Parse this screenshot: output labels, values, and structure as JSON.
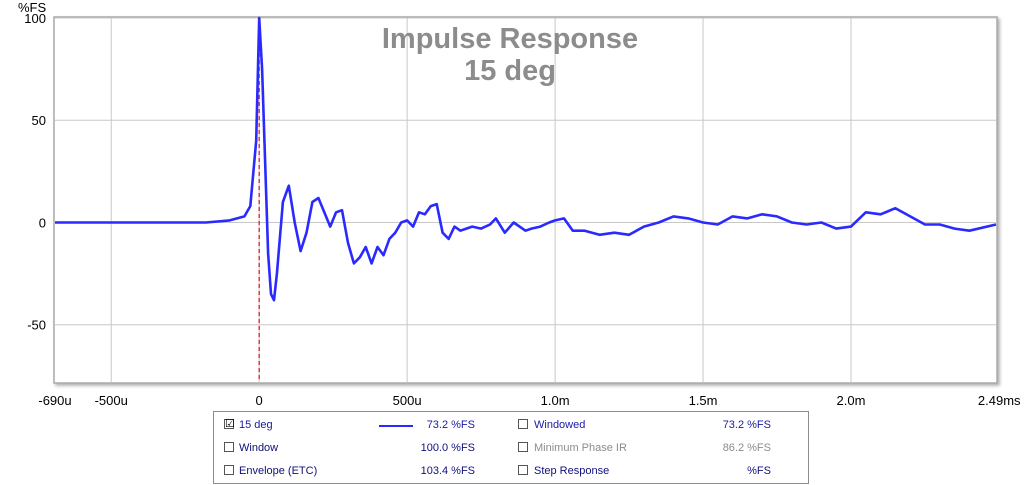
{
  "chart_data": {
    "type": "line",
    "title": "Impulse Response",
    "subtitle": "15 deg",
    "ylabel": "%FS",
    "x_unit_label": "s",
    "ylim": [
      -78,
      100
    ],
    "xlim": [
      -0.00069,
      0.00249
    ],
    "y_ticks": [
      100,
      50,
      0,
      -50
    ],
    "y_tick_labels": [
      "100",
      "50",
      "0",
      "-50"
    ],
    "x_ticks": [
      -0.00069,
      -0.0005,
      0,
      0.0005,
      0.001,
      0.0015,
      0.002,
      0.00249
    ],
    "x_tick_labels": [
      "-690u",
      "-500u",
      "0",
      "500u",
      "1.0m",
      "1.5m",
      "2.0m",
      "2.49m"
    ],
    "grid": true,
    "marker_x": 0,
    "series": [
      {
        "name": "15 deg",
        "color": "#2a2aff",
        "x": [
          -0.00069,
          -0.0005,
          -0.0003,
          -0.00018,
          -0.0001,
          -5e-05,
          -3e-05,
          -1e-05,
          0,
          1e-05,
          2e-05,
          3e-05,
          4e-05,
          5e-05,
          6e-05,
          8e-05,
          0.0001,
          0.00012,
          0.00014,
          0.00016,
          0.00018,
          0.0002,
          0.00022,
          0.00024,
          0.00026,
          0.00028,
          0.0003,
          0.00032,
          0.00034,
          0.00036,
          0.00038,
          0.0004,
          0.00042,
          0.00044,
          0.00046,
          0.00048,
          0.0005,
          0.00052,
          0.00054,
          0.00056,
          0.00058,
          0.0006,
          0.00062,
          0.00064,
          0.00066,
          0.00068,
          0.0007,
          0.00072,
          0.00075,
          0.00078,
          0.0008,
          0.00083,
          0.00086,
          0.0009,
          0.00092,
          0.00095,
          0.00098,
          0.001,
          0.00103,
          0.00106,
          0.0011,
          0.00115,
          0.0012,
          0.00125,
          0.0013,
          0.00135,
          0.0014,
          0.00145,
          0.0015,
          0.00155,
          0.0016,
          0.00165,
          0.0017,
          0.00175,
          0.0018,
          0.00185,
          0.0019,
          0.00195,
          0.002,
          0.00205,
          0.0021,
          0.00215,
          0.0022,
          0.00225,
          0.0023,
          0.00235,
          0.0024,
          0.00249
        ],
        "y": [
          0,
          0,
          0,
          0,
          1,
          3,
          8,
          40,
          100,
          75,
          30,
          -15,
          -35,
          -38,
          -25,
          10,
          18,
          0,
          -14,
          -5,
          10,
          12,
          5,
          -2,
          5,
          6,
          -10,
          -20,
          -17,
          -12,
          -20,
          -12,
          -16,
          -8,
          -5,
          0,
          1,
          -2,
          5,
          4,
          8,
          9,
          -5,
          -8,
          -2,
          -4,
          -3,
          -2,
          -3,
          -1,
          2,
          -5,
          0,
          -4,
          -3,
          -2,
          0,
          1,
          2,
          -4,
          -4,
          -6,
          -5,
          -6,
          -2,
          0,
          3,
          2,
          0,
          -1,
          3,
          2,
          4,
          3,
          0,
          -1,
          0,
          -3,
          -2,
          5,
          4,
          7,
          3,
          -1,
          -1,
          -3,
          -4,
          -1
        ]
      }
    ]
  },
  "legend": {
    "rows": [
      {
        "check": "☑",
        "label": "15 deg",
        "value": "73.2 %FS",
        "check2": "",
        "label2": "Windowed",
        "value2": "73.2 %FS"
      },
      {
        "check": "",
        "label": "Window",
        "value": "100.0 %FS",
        "check2": "",
        "label2": "Minimum Phase IR",
        "value2": "86.2 %FS"
      },
      {
        "check": "",
        "label": "Envelope (ETC)",
        "value": "103.4 %FS",
        "check2": "",
        "label2": "Step Response",
        "value2": "%FS"
      }
    ]
  }
}
